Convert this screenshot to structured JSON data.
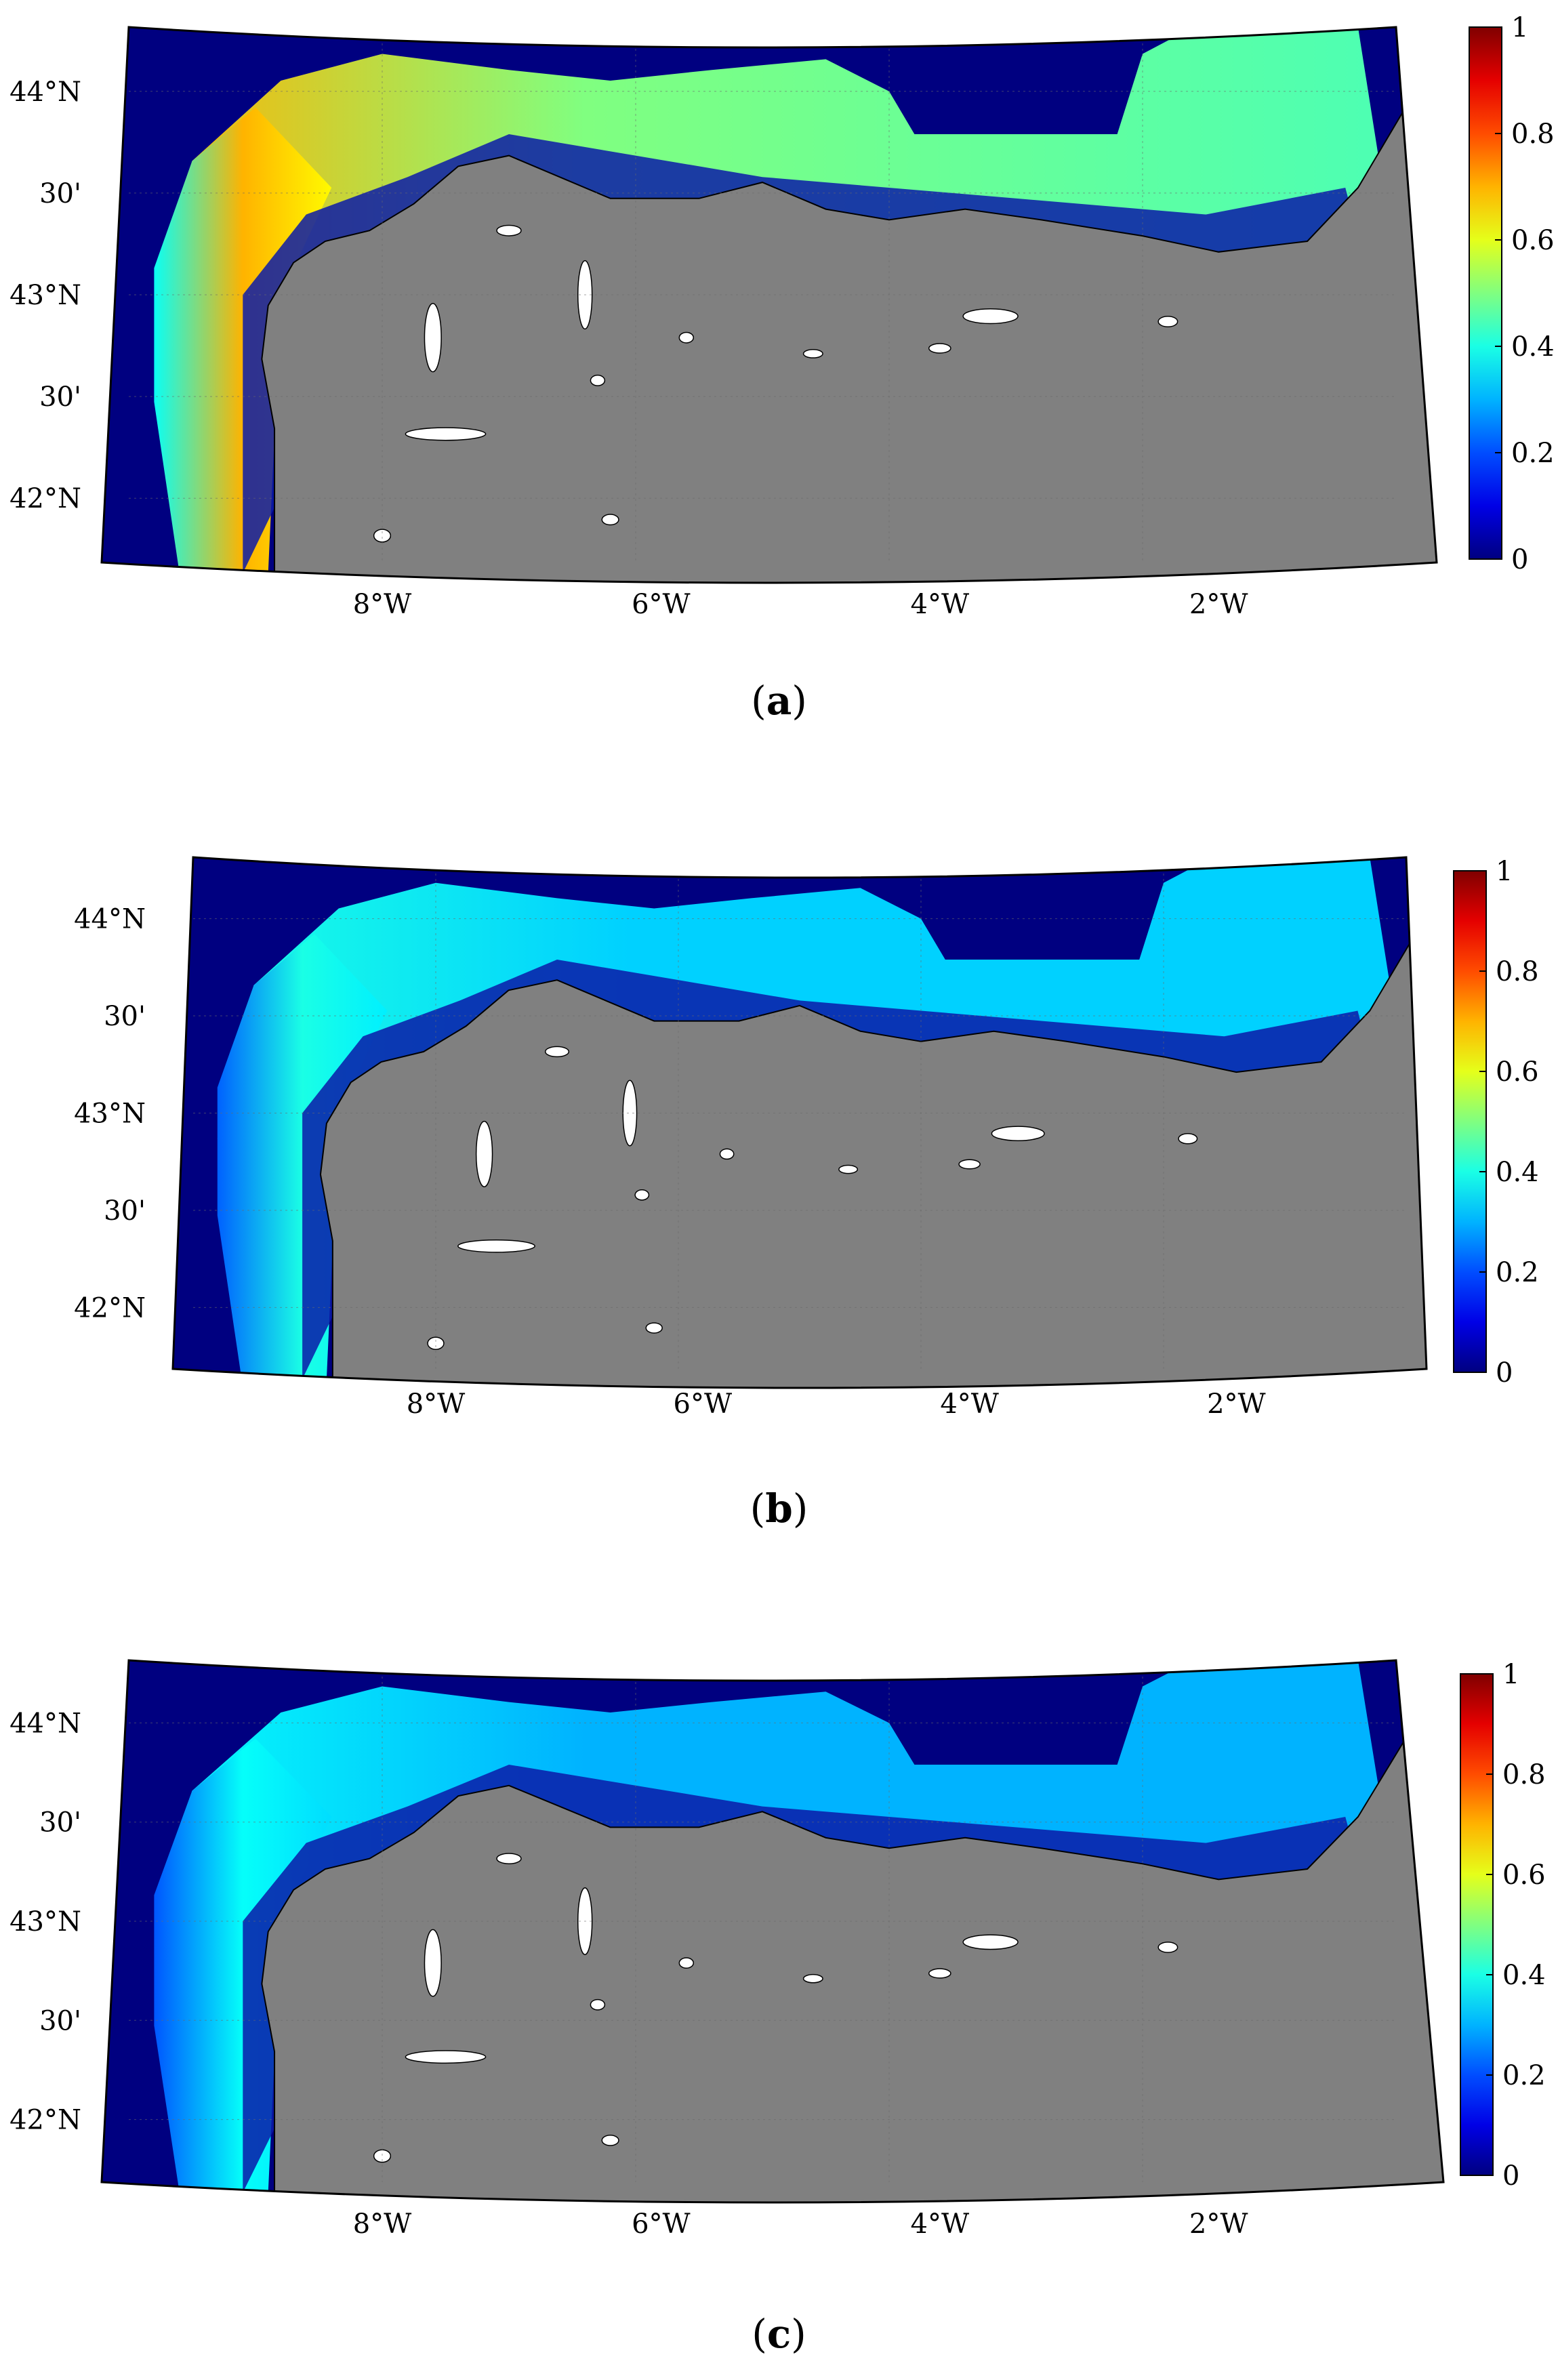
{
  "figure": {
    "panels": [
      {
        "id": "a",
        "caption_letter": "a",
        "lat_labels": [
          "44°N",
          "30'",
          "43°N",
          "30'",
          "42°N"
        ],
        "lon_labels": [
          "8°W",
          "6°W",
          "4°W",
          "2°W"
        ],
        "colorbar": {
          "ticks": [
            "1",
            "0.8",
            "0.6",
            "0.4",
            "0.2",
            "0"
          ],
          "range": [
            0,
            1
          ],
          "colormap": "jet"
        },
        "shelf_value_west": 0.7,
        "shelf_value_north": 0.5,
        "shelf_value_east": 0.45,
        "colors": {
          "land": "#808080",
          "ocean_deep": "#000080"
        }
      },
      {
        "id": "b",
        "caption_letter": "b",
        "lat_labels": [
          "44°N",
          "30'",
          "43°N",
          "30'",
          "42°N"
        ],
        "lon_labels": [
          "8°W",
          "6°W",
          "4°W",
          "2°W"
        ],
        "colorbar": {
          "ticks": [
            "1",
            "0.8",
            "0.6",
            "0.4",
            "0.2",
            "0"
          ],
          "range": [
            0,
            1
          ],
          "colormap": "jet"
        },
        "shelf_value_west": 0.4,
        "shelf_value_north": 0.33,
        "shelf_value_east": 0.33,
        "colors": {
          "land": "#808080",
          "ocean_deep": "#000080"
        }
      },
      {
        "id": "c",
        "caption_letter": "c",
        "lat_labels": [
          "44°N",
          "30'",
          "43°N",
          "30'",
          "42°N"
        ],
        "lon_labels": [
          "8°W",
          "6°W",
          "4°W",
          "2°W"
        ],
        "colorbar": {
          "ticks": [
            "1",
            "0.8",
            "0.6",
            "0.4",
            "0.2",
            "0"
          ],
          "range": [
            0,
            1
          ],
          "colormap": "jet"
        },
        "shelf_value_west": 0.38,
        "shelf_value_north": 0.3,
        "shelf_value_east": 0.3,
        "colors": {
          "land": "#808080",
          "ocean_deep": "#000080"
        }
      }
    ]
  }
}
